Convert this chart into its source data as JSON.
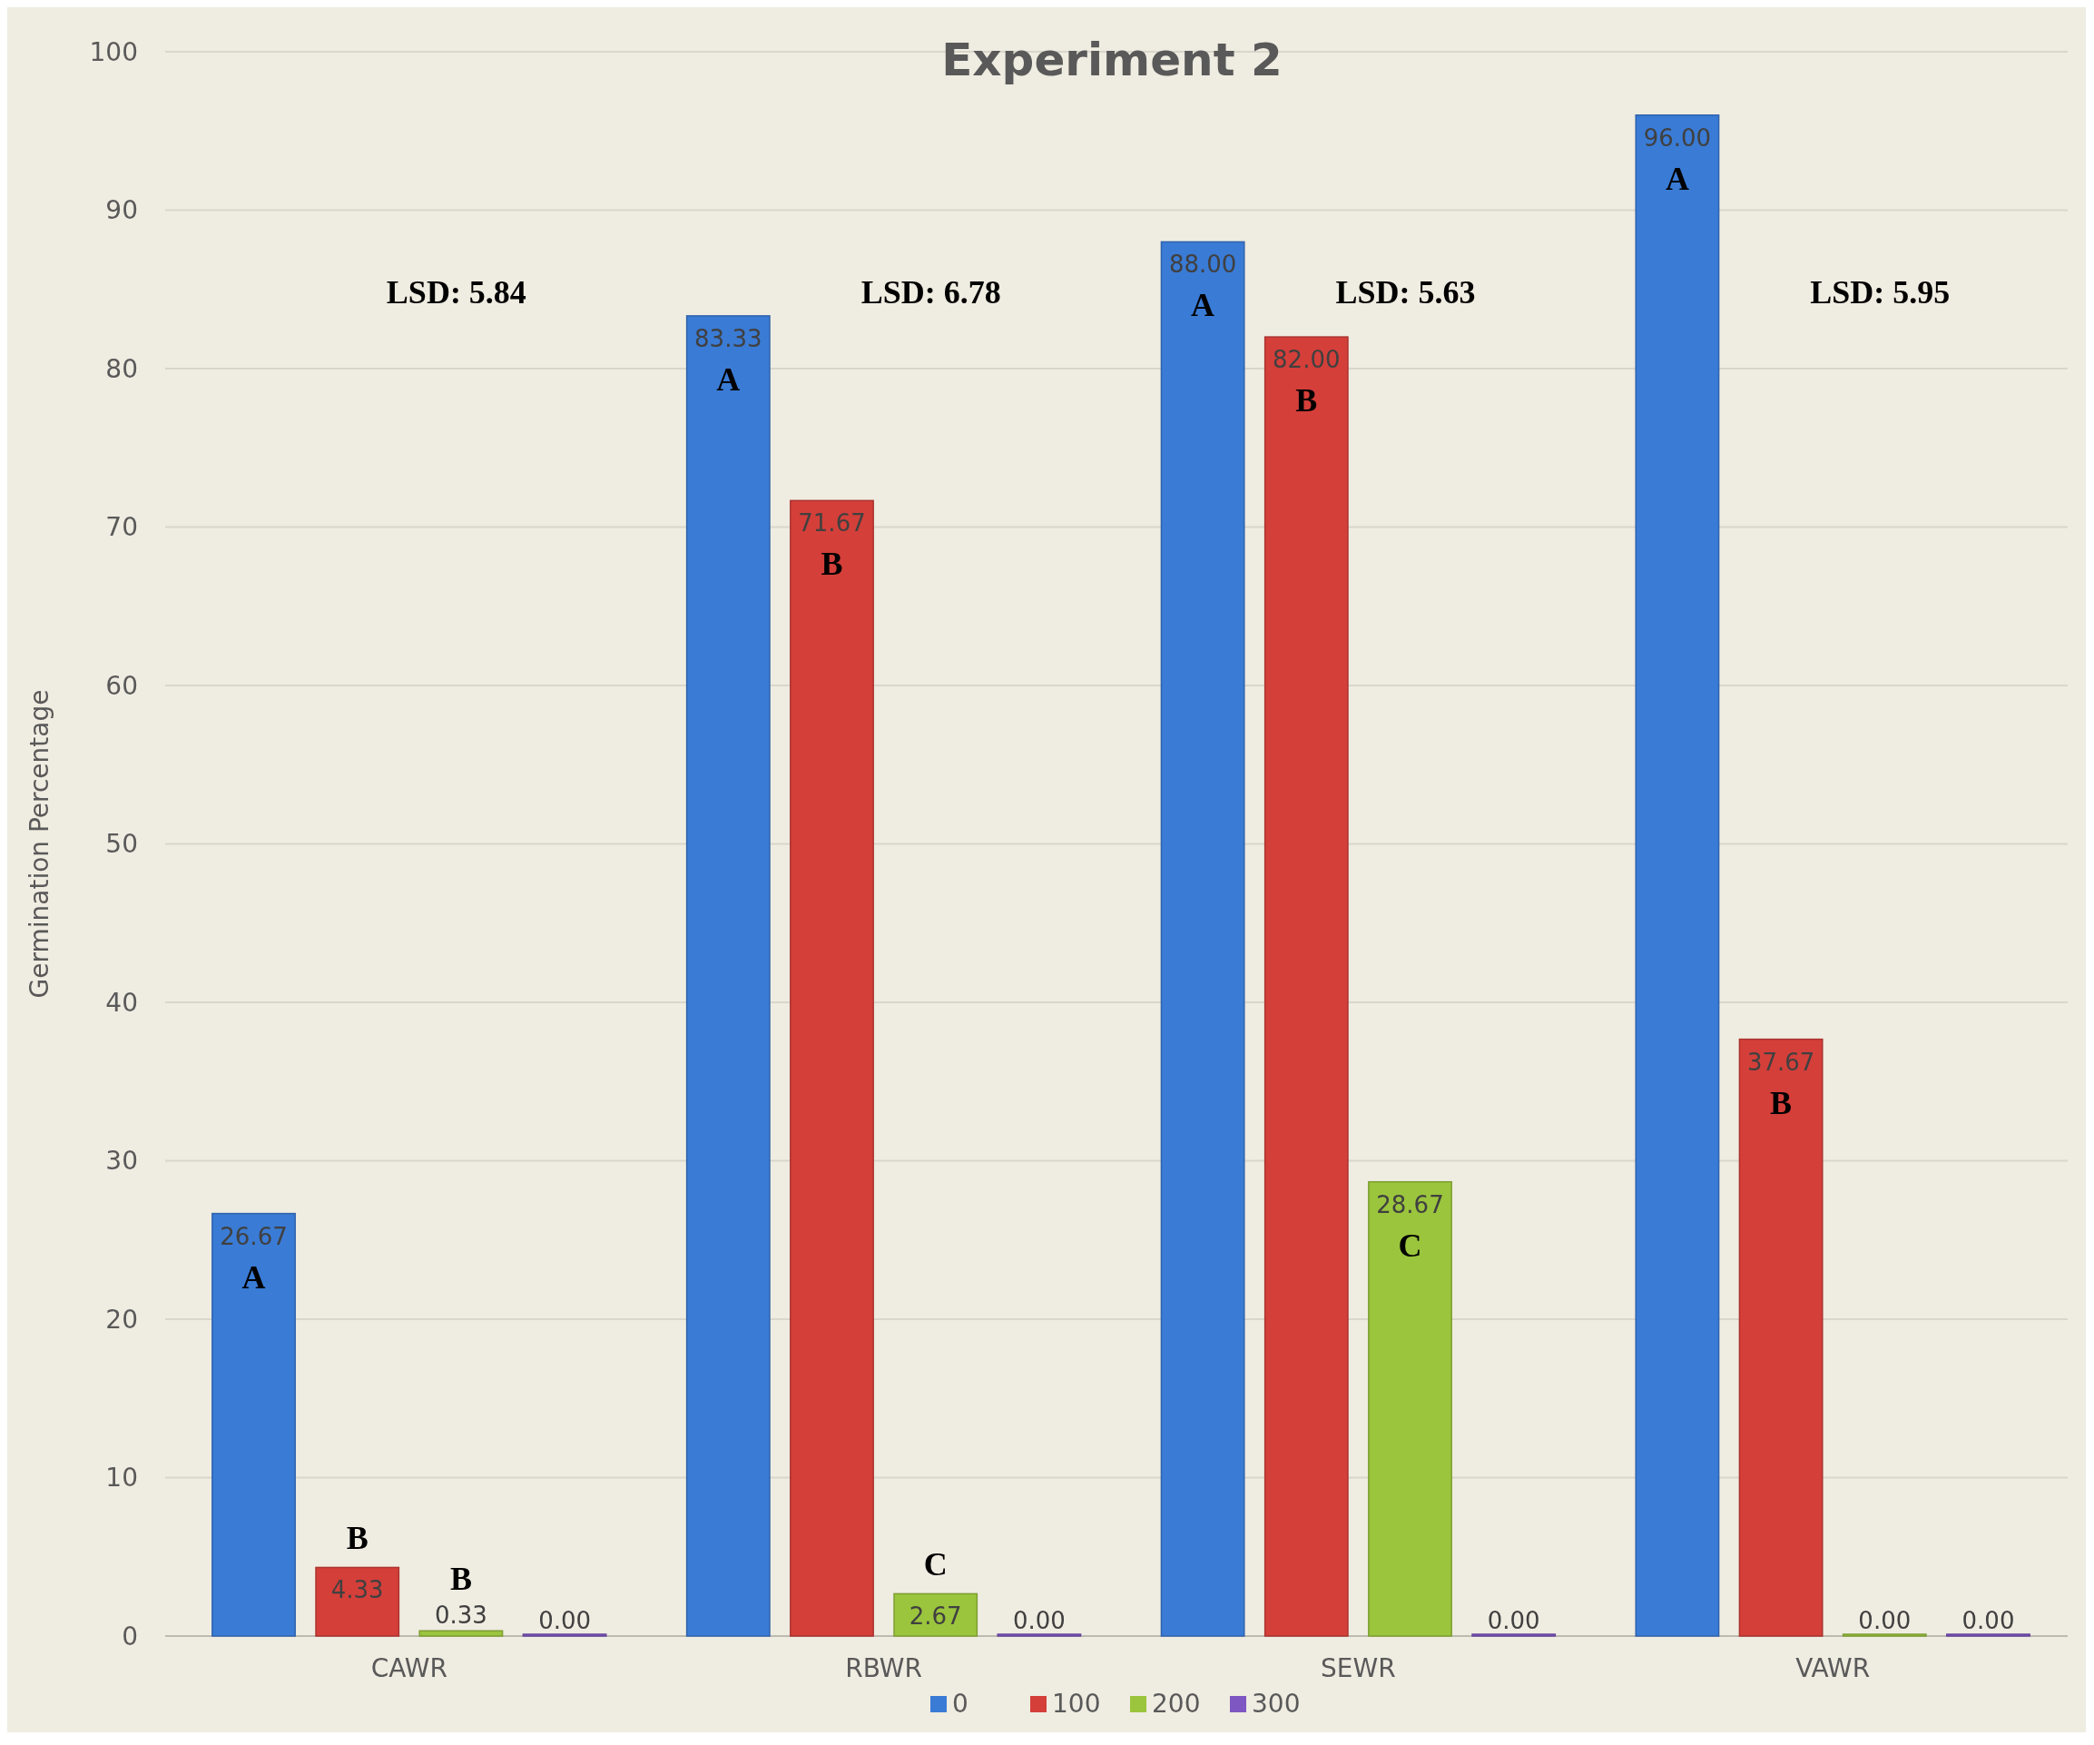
{
  "chart_data": {
    "type": "bar",
    "title": "Experiment 2",
    "ylabel": "Germination Percentage",
    "categories": [
      "CAWR",
      "RBWR",
      "SEWR",
      "VAWR"
    ],
    "series": [
      {
        "name": "0",
        "color": "#3a7bd5",
        "values": [
          26.67,
          83.33,
          88,
          96
        ],
        "value_labels": [
          "26.67",
          "83.33",
          "88.00",
          "96.00"
        ]
      },
      {
        "name": "100",
        "color": "#d43f3a",
        "values": [
          4.33,
          71.67,
          82,
          37.67
        ],
        "value_labels": [
          "4.33",
          "71.67",
          "82.00",
          "37.67"
        ]
      },
      {
        "name": "200",
        "color": "#9bc53d",
        "values": [
          0.33,
          2.67,
          28.67,
          0
        ],
        "value_labels": [
          "0.33",
          "2.67",
          "28.67",
          "0.00"
        ]
      },
      {
        "name": "300",
        "color": "#7e57c2",
        "values": [
          0,
          0,
          0,
          0
        ],
        "value_labels": [
          "0.00",
          "0.00",
          "0.00",
          "0.00"
        ]
      }
    ],
    "ylim": [
      0,
      100
    ],
    "yticks": [
      0,
      10,
      20,
      30,
      40,
      50,
      60,
      70,
      80,
      90,
      100
    ],
    "grid": "y",
    "legend": "bottom",
    "annotations": [
      "LSD: 5.84",
      "LSD: 6.78",
      "LSD: 5.63",
      "LSD: 5.95",
      "A",
      "B",
      "B",
      "A",
      "B",
      "C",
      "A",
      "B",
      "C",
      "A",
      "B"
    ]
  }
}
